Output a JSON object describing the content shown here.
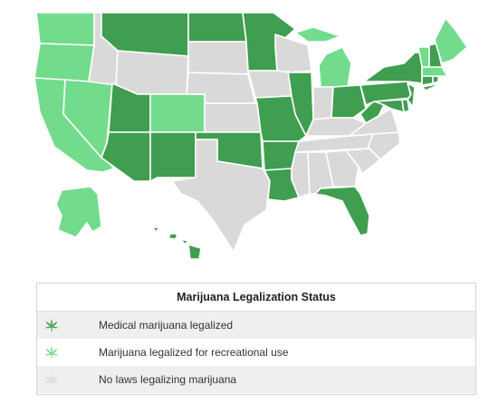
{
  "colors": {
    "medical": "#3f9e4f",
    "recreational": "#73dc8c",
    "none": "#d9d9d9"
  },
  "legend": {
    "title": "Marijuana Legalization Status",
    "items": [
      {
        "label": "Medical marijuana legalized",
        "status": "medical",
        "icon": "cannabis-leaf-icon"
      },
      {
        "label": "Marijuana legalized for recreational use",
        "status": "recreational",
        "icon": "cannabis-leaf-icon"
      },
      {
        "label": "No laws legalizing marijuana",
        "status": "none",
        "icon": "cannabis-leaf-icon"
      }
    ]
  },
  "states": {
    "WA": "recreational",
    "OR": "recreational",
    "CA": "recreational",
    "NV": "recreational",
    "AK": "recreational",
    "CO": "recreational",
    "MI": "recreational",
    "ME": "recreational",
    "VT": "recreational",
    "MA": "recreational",
    "MT": "medical",
    "ND": "medical",
    "MN": "medical",
    "UT": "medical",
    "AZ": "medical",
    "NM": "medical",
    "OK": "medical",
    "AR": "medical",
    "MO": "medical",
    "IL": "medical",
    "LA": "medical",
    "FL": "medical",
    "OH": "medical",
    "PA": "medical",
    "NY": "medical",
    "WV": "medical",
    "MD": "medical",
    "DE": "medical",
    "NJ": "medical",
    "NH": "medical",
    "CT": "medical",
    "RI": "medical",
    "HI": "medical",
    "ID": "none",
    "WY": "none",
    "SD": "none",
    "NE": "none",
    "KS": "none",
    "TX": "none",
    "IA": "none",
    "WI": "none",
    "IN": "none",
    "KY": "none",
    "TN": "none",
    "MS": "none",
    "AL": "none",
    "GA": "none",
    "SC": "none",
    "NC": "none",
    "VA": "none"
  }
}
